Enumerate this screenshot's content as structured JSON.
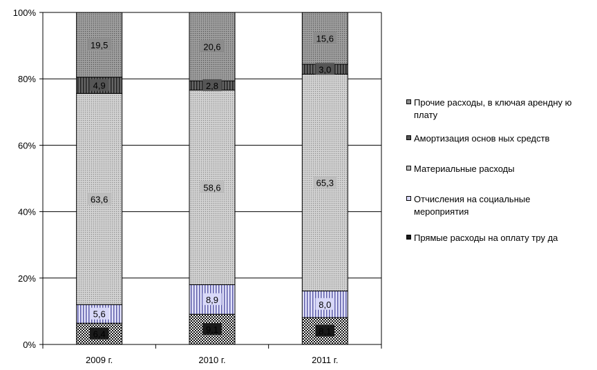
{
  "chart_data": {
    "type": "bar",
    "stacked": true,
    "percent": true,
    "categories": [
      "2009 г.",
      "2010 г.",
      "2011 г."
    ],
    "series": [
      {
        "name": "Прямые расходы на оплату труда",
        "values": [
          6.4,
          9.1,
          8.1
        ],
        "labels": [
          "6,4",
          "9,1",
          "8,1"
        ],
        "color": "#1a1a1a",
        "pattern": "checker"
      },
      {
        "name": "Отчисления на социальные мероприятия",
        "values": [
          5.6,
          8.9,
          8.0
        ],
        "labels": [
          "5,6",
          "8,9",
          "8,0"
        ],
        "color": "#d8d8f8",
        "pattern": "vstripes"
      },
      {
        "name": "Материальные расходы",
        "values": [
          63.6,
          58.6,
          65.3
        ],
        "labels": [
          "63,6",
          "58,6",
          "65,3"
        ],
        "color": "#bdbdbd",
        "pattern": "dots"
      },
      {
        "name": "Амортизация основных средств",
        "values": [
          4.9,
          2.8,
          3.0
        ],
        "labels": [
          "4,9",
          "2,8",
          "3,0"
        ],
        "color": "#555555",
        "pattern": "vstripes-dark"
      },
      {
        "name": "Прочие расходы, включая арендную плату",
        "values": [
          19.5,
          20.6,
          15.6
        ],
        "labels": [
          "19,5",
          "20,6",
          "15,6"
        ],
        "color": "#8c8c8c",
        "pattern": "dots-dark"
      }
    ],
    "legend_lines": [
      [
        "Прочие расходы, в ключая арендну ю",
        "плату"
      ],
      [
        "Амортизация основ ных средств"
      ],
      [
        "Материальные расходы"
      ],
      [
        "Отчисления на социальные",
        "мероприятия"
      ],
      [
        "Прямые расходы на оплату тру да"
      ]
    ],
    "yticks": [
      "0%",
      "20%",
      "40%",
      "60%",
      "80%",
      "100%"
    ],
    "ylim": [
      0,
      100
    ],
    "grid": true,
    "legend_position": "right"
  }
}
